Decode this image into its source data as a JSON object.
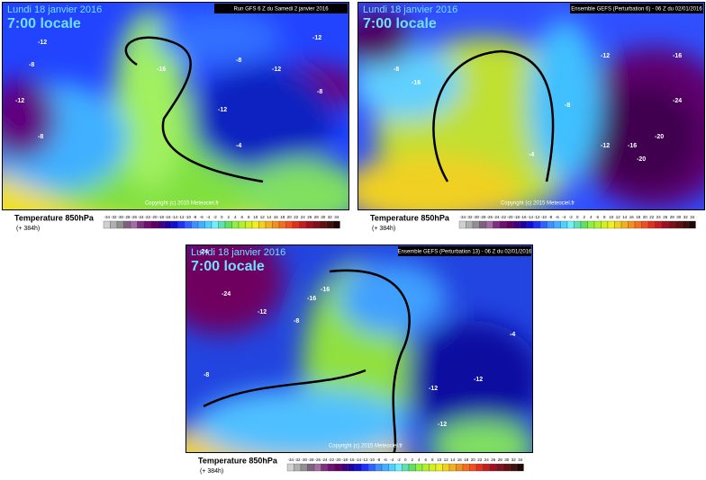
{
  "panels": [
    {
      "date": "Lundi 18 janvier 2016",
      "time": "7:00 locale",
      "run": "Run GFS 6 Z du Samedi 2 janvier 2016",
      "copyright": "Copyright (c) 2015 Meteociel.fr",
      "variable": "Temperature 850hPa",
      "lead": "(+ 384h)",
      "contours": [
        -12,
        -8,
        -12,
        -8,
        -16,
        -12,
        -8,
        -12,
        -8,
        -4,
        -12
      ]
    },
    {
      "date": "Lundi 18 janvier 2016",
      "time": "7:00 locale",
      "run": "Ensemble GEFS (Perturbation 6) - 06 Z du 02/01/2016",
      "copyright": "Copyright (c) 2015 Meteociel.fr",
      "variable": "Temperature 850hPa",
      "lead": "(+ 384h)",
      "contours": [
        -8,
        -16,
        -12,
        -8,
        -12,
        -16,
        -24,
        -20,
        -20,
        -16,
        -4
      ]
    },
    {
      "date": "Lundi 18 janvier 2016",
      "time": "7:00 locale",
      "run": "Ensemble GEFS (Perturbation 13) - 06 Z du 02/01/2016",
      "copyright": "Copyright (c) 2015 Meteociel.fr",
      "variable": "Temperature 850hPa",
      "lead": "(+ 384h)",
      "contours": [
        -24,
        -24,
        -16,
        -12,
        -8,
        -16,
        -12,
        -12,
        -8,
        -12,
        -4
      ]
    }
  ],
  "scale": {
    "labels": [
      -34,
      -32,
      -30,
      -28,
      -26,
      -24,
      -22,
      -20,
      -18,
      -16,
      -14,
      -12,
      -10,
      -8,
      -6,
      -4,
      -2,
      0,
      2,
      4,
      6,
      8,
      10,
      12,
      14,
      16,
      18,
      20,
      22,
      24,
      26,
      28,
      30,
      32,
      34
    ],
    "colors": [
      "#d0d0d0",
      "#b0b0b0",
      "#909090",
      "#806080",
      "#a070a0",
      "#803080",
      "#701070",
      "#600060",
      "#400080",
      "#2000a0",
      "#1010d0",
      "#2030ff",
      "#3060ff",
      "#4090ff",
      "#40b0ff",
      "#50d0ff",
      "#70f0ff",
      "#60e0b0",
      "#60e060",
      "#90f040",
      "#b0f030",
      "#d0f020",
      "#f0f020",
      "#f0d020",
      "#f0b020",
      "#f09020",
      "#f07020",
      "#f05020",
      "#e03020",
      "#c02020",
      "#a01020",
      "#801020",
      "#601010",
      "#401010",
      "#200808"
    ]
  }
}
